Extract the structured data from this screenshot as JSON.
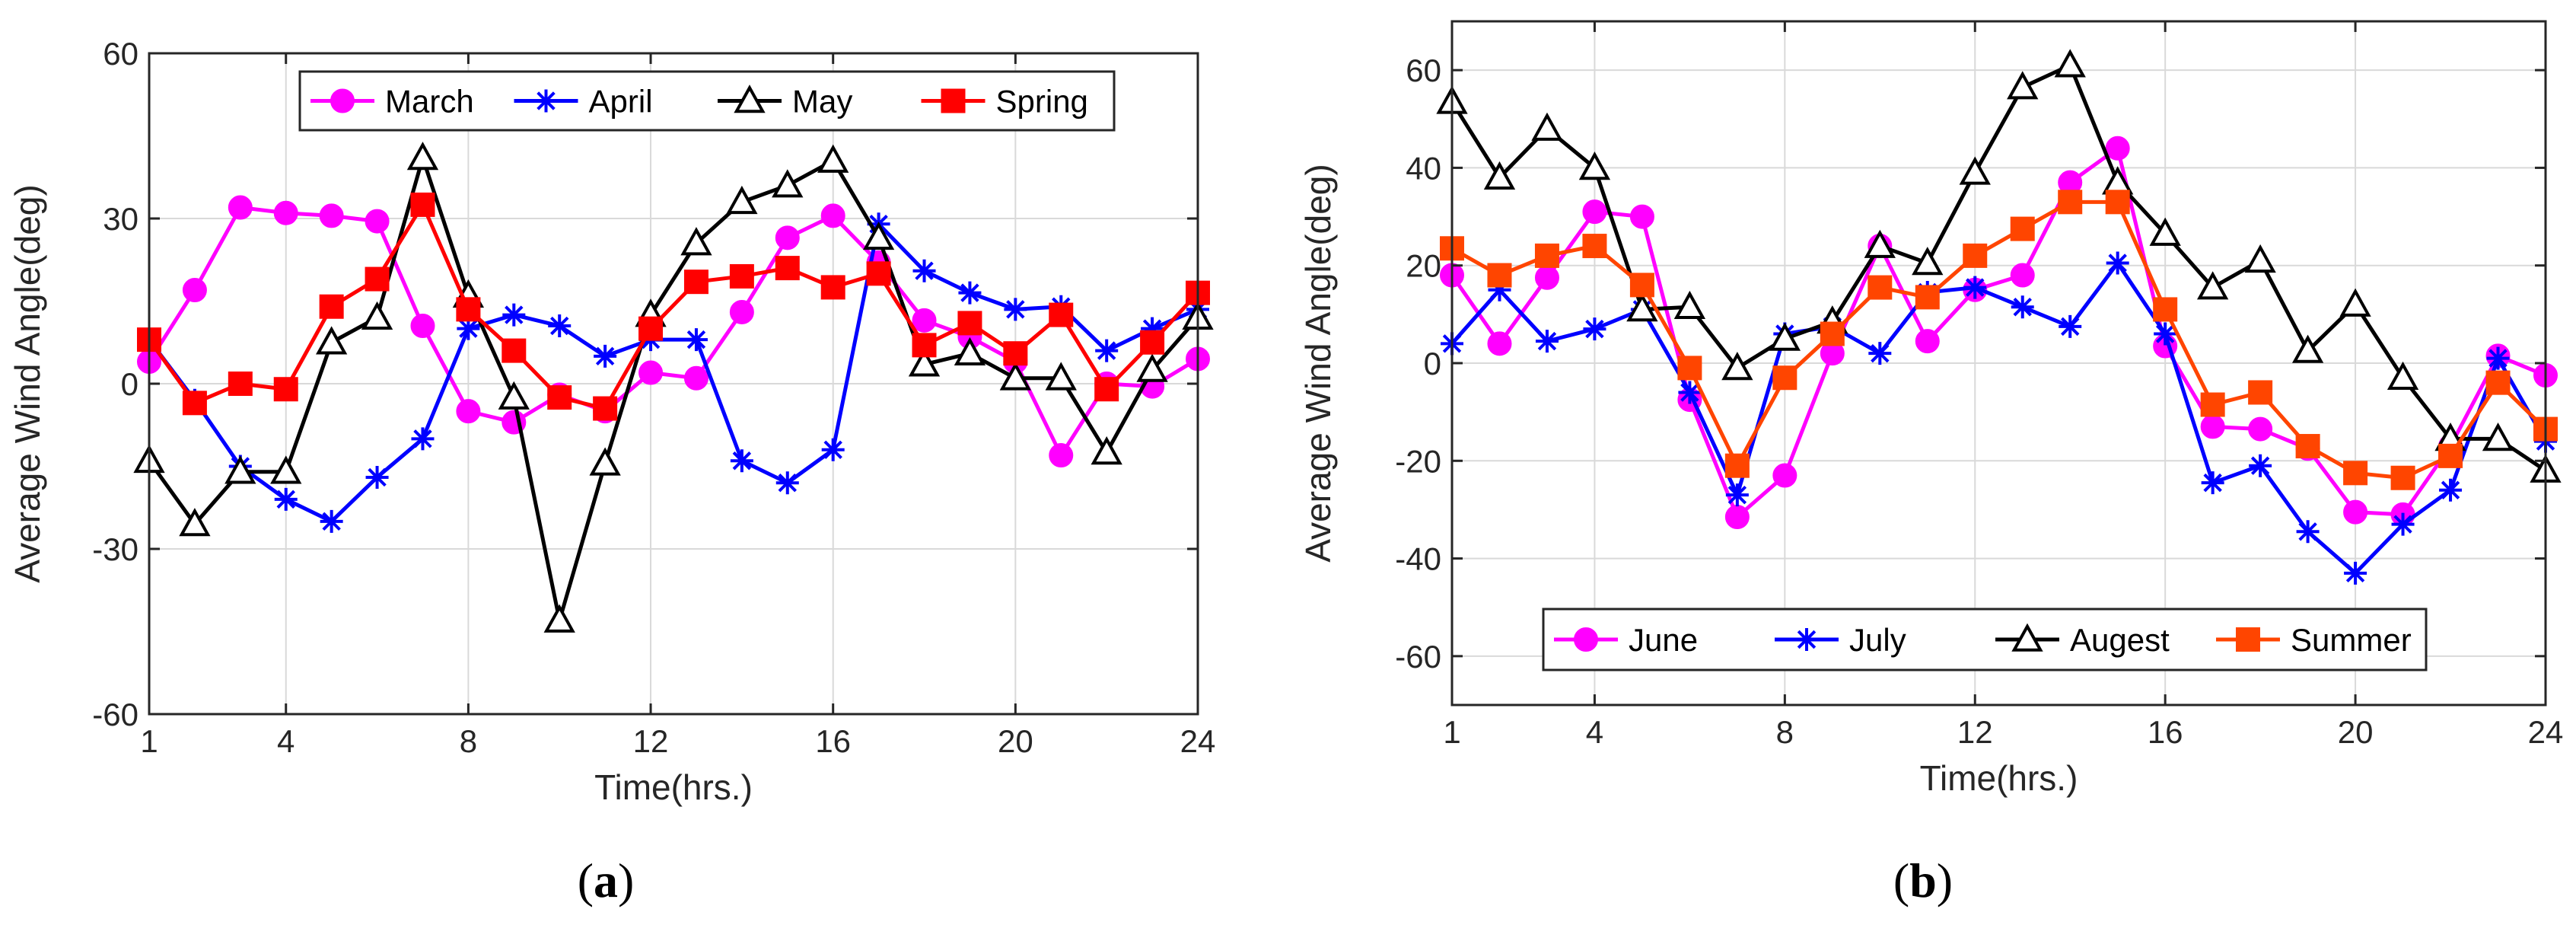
{
  "chart_data": [
    {
      "type": "line",
      "panel_id": "a",
      "caption_letter": "a",
      "xlabel": "Time(hrs.)",
      "ylabel": "Average Wind Angle(deg)",
      "xlim": [
        1,
        24
      ],
      "ylim": [
        -60,
        60
      ],
      "xticks": [
        1,
        4,
        8,
        12,
        16,
        20,
        24
      ],
      "yticks": [
        -60,
        -30,
        0,
        30,
        60
      ],
      "grid": true,
      "legend_position": "top, horizontal",
      "x": [
        1,
        2,
        3,
        4,
        5,
        6,
        7,
        8,
        9,
        10,
        11,
        12,
        13,
        14,
        15,
        16,
        17,
        18,
        19,
        20,
        21,
        22,
        23,
        24
      ],
      "series": [
        {
          "name": "March",
          "color": "#ff00ff",
          "marker": "circle",
          "values": [
            4,
            17,
            32,
            31,
            30.5,
            29.5,
            10.5,
            -5,
            -7,
            -2,
            -5,
            2,
            1,
            13,
            26.5,
            30.5,
            22,
            11.5,
            8.5,
            4,
            -13,
            0,
            -0.5,
            4.5
          ]
        },
        {
          "name": "April",
          "color": "#0000ff",
          "marker": "star",
          "values": [
            8,
            -3,
            -15,
            -21,
            -25,
            -17,
            -10,
            10,
            12.5,
            10.5,
            5,
            8,
            8,
            -14,
            -18,
            -12,
            29,
            20.5,
            16.5,
            13.5,
            14,
            6,
            10,
            13.5
          ]
        },
        {
          "name": "May",
          "color": "#000000",
          "marker": "triangle",
          "values": [
            -14,
            -25.5,
            -16,
            -16,
            7.5,
            12,
            41,
            16,
            -2.5,
            -43,
            -14.5,
            12.5,
            25.5,
            33,
            36,
            40.5,
            26.5,
            3.5,
            5.5,
            1,
            1,
            -12.5,
            2.5,
            12
          ]
        },
        {
          "name": "Spring",
          "color": "#ff0000",
          "marker": "square",
          "values": [
            8,
            -3.5,
            0,
            -1,
            14,
            19,
            32.5,
            13.5,
            6,
            -2.5,
            -4.5,
            10,
            18.5,
            19.5,
            21,
            17.5,
            20,
            7,
            11,
            5.5,
            12.5,
            -1,
            7.5,
            16.5
          ]
        }
      ]
    },
    {
      "type": "line",
      "panel_id": "b",
      "caption_letter": "b",
      "xlabel": "Time(hrs.)",
      "ylabel": "Average Wind Angle(deg)",
      "xlim": [
        1,
        24
      ],
      "ylim": [
        -70,
        70
      ],
      "xticks": [
        1,
        4,
        8,
        12,
        16,
        20,
        24
      ],
      "yticks": [
        -60,
        -40,
        -20,
        0,
        20,
        40,
        60
      ],
      "grid": true,
      "legend_position": "bottom, horizontal",
      "x": [
        1,
        2,
        3,
        4,
        5,
        6,
        7,
        8,
        9,
        10,
        11,
        12,
        13,
        14,
        15,
        16,
        17,
        18,
        19,
        20,
        21,
        22,
        23,
        24
      ],
      "series": [
        {
          "name": "June",
          "color": "#ff00ff",
          "marker": "circle",
          "values": [
            18,
            4,
            17.5,
            31,
            30,
            -7.5,
            -31.5,
            -23,
            2,
            24,
            4.5,
            15,
            18,
            37,
            44,
            3.5,
            -13,
            -13.5,
            -17.5,
            -30.5,
            -31,
            -17,
            1.5,
            -2.5
          ]
        },
        {
          "name": "July",
          "color": "#0000ff",
          "marker": "star",
          "values": [
            4,
            15,
            4.5,
            7,
            11,
            -6,
            -27,
            6,
            7.5,
            2,
            14.5,
            15.5,
            11.5,
            7.5,
            20.5,
            6,
            -24.5,
            -21,
            -34.5,
            -43,
            -33,
            -26,
            1,
            -16
          ]
        },
        {
          "name": "Augest",
          "color": "#000000",
          "marker": "triangle",
          "values": [
            53.5,
            38,
            48,
            40,
            11,
            11.5,
            -1,
            5,
            8.5,
            24,
            20.5,
            39,
            56.5,
            61,
            37,
            26.5,
            15.5,
            21,
            2.5,
            12,
            -3,
            -15.5,
            -15.5,
            -22
          ]
        },
        {
          "name": "Summer",
          "color": "#ff4500",
          "marker": "square",
          "values": [
            23.5,
            18,
            22,
            24,
            16,
            -1,
            -21,
            -3,
            6,
            15.5,
            13.5,
            22,
            27.5,
            33,
            33,
            11,
            -8.5,
            -6,
            -17,
            -22.5,
            -23.5,
            -19,
            -4,
            -13.5
          ]
        }
      ]
    }
  ]
}
